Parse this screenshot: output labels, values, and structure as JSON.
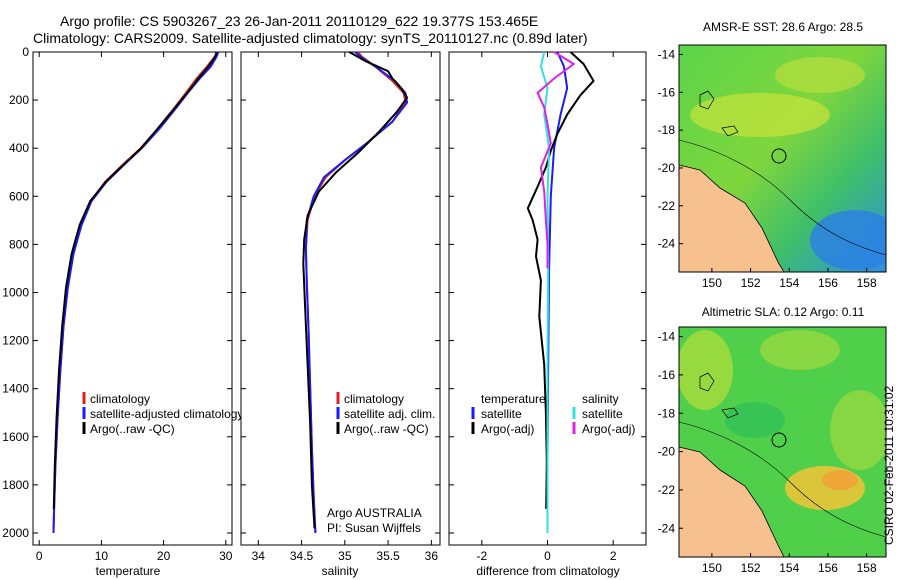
{
  "header": {
    "line1": "Argo profile: CS 5903267_23 26-Jan-2011 20110129_622 19.377S 153.465E",
    "line2": "Climatology: CARS2009. Satellite-adjusted climatology: synTS_20110127.nc (0.89d later)"
  },
  "colors": {
    "climatology": "#e02020",
    "satellite": "#1a1aff",
    "argo": "#000000",
    "salinity_satellite": "#33e0e0",
    "salinity_argo": "#e020e0",
    "land": "#f7c08f"
  },
  "chart_data": [
    {
      "type": "line",
      "xlabel": "temperature",
      "xlim": [
        -1,
        31
      ],
      "ylim": [
        0,
        2050
      ],
      "y_reversed": true,
      "xticks": [
        "0",
        "10",
        "20",
        "30"
      ],
      "yticks": [
        "0",
        "200",
        "400",
        "600",
        "800",
        "1000",
        "1200",
        "1400",
        "1600",
        "1800",
        "2000"
      ],
      "legend": [
        "climatology",
        "satellite-adjusted climatology",
        "Argo(..raw -QC)"
      ],
      "series": [
        {
          "name": "climatology",
          "color": "#e02020",
          "x": [
            28.6,
            28.2,
            27.0,
            25.3,
            23.6,
            21.5,
            19.0,
            16.3,
            13.4,
            10.6,
            8.3,
            6.7,
            5.5,
            4.6,
            3.9,
            3.4,
            2.95,
            2.6,
            2.4,
            2.3
          ],
          "y": [
            0,
            20,
            60,
            110,
            170,
            240,
            320,
            400,
            470,
            540,
            620,
            720,
            840,
            980,
            1140,
            1320,
            1520,
            1720,
            1900,
            1990
          ]
        },
        {
          "name": "satellite-adjusted climatology",
          "color": "#1a1aff",
          "x": [
            28.8,
            28.5,
            27.6,
            25.8,
            23.9,
            21.8,
            19.3,
            16.5,
            13.6,
            10.8,
            8.4,
            6.8,
            5.5,
            4.6,
            3.9,
            3.4,
            2.95,
            2.6,
            2.4,
            2.3
          ],
          "y": [
            0,
            20,
            60,
            110,
            170,
            240,
            320,
            400,
            470,
            540,
            620,
            720,
            840,
            980,
            1140,
            1320,
            1520,
            1720,
            1900,
            2000
          ]
        },
        {
          "name": "Argo(..raw -QC)",
          "color": "#000000",
          "x": [
            28.5,
            28.3,
            27.2,
            25.6,
            23.8,
            21.6,
            19.0,
            16.4,
            13.5,
            10.7,
            8.2,
            6.5,
            5.2,
            4.3,
            3.7,
            3.2,
            2.8,
            2.5,
            2.35
          ],
          "y": [
            0,
            20,
            60,
            110,
            170,
            240,
            320,
            400,
            470,
            540,
            620,
            720,
            840,
            980,
            1140,
            1320,
            1520,
            1720,
            1900
          ]
        }
      ]
    },
    {
      "type": "line",
      "xlabel": "salinity",
      "xlim": [
        33.8,
        36.1
      ],
      "ylim": [
        0,
        2050
      ],
      "y_reversed": true,
      "xticks": [
        "34",
        "34.5",
        "35",
        "35.5",
        "36"
      ],
      "legend": [
        "climatology",
        "satellite adj. clim.",
        "Argo(..raw -QC)"
      ],
      "annotation": [
        "Argo AUSTRALIA",
        "PI: Susan Wijffels"
      ],
      "series": [
        {
          "name": "climatology",
          "color": "#e02020",
          "x": [
            35.15,
            35.2,
            35.35,
            35.55,
            35.68,
            35.7,
            35.55,
            35.25,
            35.0,
            34.78,
            34.65,
            34.57,
            34.55,
            34.56,
            34.58,
            34.6,
            34.62,
            34.64,
            34.66
          ],
          "y": [
            0,
            20,
            60,
            120,
            170,
            210,
            290,
            380,
            450,
            520,
            600,
            700,
            820,
            960,
            1150,
            1400,
            1650,
            1850,
            2000
          ]
        },
        {
          "name": "satellite adj. clim.",
          "color": "#1a1aff",
          "x": [
            35.12,
            35.18,
            35.35,
            35.58,
            35.7,
            35.72,
            35.55,
            35.25,
            35.0,
            34.76,
            34.64,
            34.56,
            34.55,
            34.56,
            34.58,
            34.6,
            34.62,
            34.64,
            34.66
          ],
          "y": [
            0,
            20,
            60,
            120,
            170,
            210,
            290,
            380,
            450,
            520,
            600,
            700,
            820,
            960,
            1150,
            1400,
            1650,
            1850,
            2000
          ]
        },
        {
          "name": "Argo(..raw -QC)",
          "color": "#000000",
          "x": [
            35.05,
            35.25,
            35.5,
            35.55,
            35.65,
            35.72,
            35.6,
            35.4,
            35.15,
            34.9,
            34.7,
            34.57,
            34.53,
            34.52,
            34.54,
            34.57,
            34.6,
            34.62,
            34.65
          ],
          "y": [
            0,
            40,
            80,
            110,
            150,
            190,
            250,
            330,
            420,
            500,
            580,
            680,
            780,
            880,
            1050,
            1300,
            1550,
            1800,
            1980
          ]
        }
      ]
    },
    {
      "type": "line",
      "xlabel": "difference from climatology",
      "xlim": [
        -3,
        3
      ],
      "ylim": [
        0,
        2050
      ],
      "y_reversed": true,
      "xticks": [
        "-2",
        "0",
        "2"
      ],
      "legend_left_title": "temperature",
      "legend_right_title": "salinity",
      "legend_left": [
        "satellite",
        "Argo(-adj)"
      ],
      "legend_right": [
        "satellite",
        "Argo(-adj)"
      ],
      "series": [
        {
          "name": "temperature satellite",
          "color": "#1a1aff",
          "x": [
            0.3,
            0.5,
            0.6,
            0.4,
            0.2,
            0.1,
            0.05,
            0.02,
            0.0,
            0.0
          ],
          "y": [
            0,
            60,
            150,
            260,
            400,
            600,
            900,
            1300,
            1700,
            2000
          ]
        },
        {
          "name": "temperature Argo(-adj)",
          "color": "#000000",
          "x": [
            0.7,
            1.1,
            1.4,
            1.0,
            0.6,
            0.3,
            0.1,
            -0.05,
            -0.3,
            -0.6,
            -0.45,
            -0.3,
            -0.35,
            -0.2,
            -0.25,
            -0.1,
            -0.05,
            -0.02,
            -0.04
          ],
          "y": [
            0,
            50,
            120,
            180,
            260,
            340,
            410,
            480,
            560,
            650,
            700,
            780,
            850,
            950,
            1100,
            1300,
            1500,
            1700,
            1900
          ]
        },
        {
          "name": "salinity satellite",
          "color": "#33e0e0",
          "x": [
            -0.1,
            -0.2,
            0.0,
            -0.1,
            0.05,
            0.0,
            0.02,
            0.0,
            0.0,
            0.0
          ],
          "y": [
            0,
            60,
            150,
            260,
            400,
            600,
            900,
            1300,
            1700,
            2000
          ]
        },
        {
          "name": "salinity Argo(-adj)",
          "color": "#e020e0",
          "x": [
            0.2,
            0.8,
            0.2,
            -0.3,
            -0.1,
            0.0,
            0.1,
            -0.2,
            -0.1,
            -0.05,
            0.0,
            0.0
          ],
          "y": [
            0,
            50,
            110,
            170,
            230,
            300,
            380,
            480,
            580,
            700,
            800,
            900
          ]
        }
      ]
    },
    {
      "type": "heatmap",
      "title": "AMSR-E SST: 28.6 Argo: 28.5",
      "xticks": [
        "150",
        "152",
        "154",
        "156",
        "158"
      ],
      "yticks": [
        "-14",
        "-16",
        "-18",
        "-20",
        "-22",
        "-24"
      ],
      "xlim": [
        148.3,
        159.0
      ],
      "ylim": [
        -25.5,
        -13.5
      ],
      "marker": {
        "lon": 153.465,
        "lat": -19.377
      }
    },
    {
      "type": "heatmap",
      "title": "Altimetric SLA: 0.12 Argo: 0.11",
      "xticks": [
        "150",
        "152",
        "154",
        "156",
        "158"
      ],
      "yticks": [
        "-14",
        "-16",
        "-18",
        "-20",
        "-22",
        "-24"
      ],
      "xlim": [
        148.3,
        159.0
      ],
      "ylim": [
        -25.5,
        -13.5
      ],
      "marker": {
        "lon": 153.465,
        "lat": -19.377
      }
    }
  ],
  "footer": {
    "stamp": "CSIRO 02-Feb-2011 10:31:02"
  }
}
